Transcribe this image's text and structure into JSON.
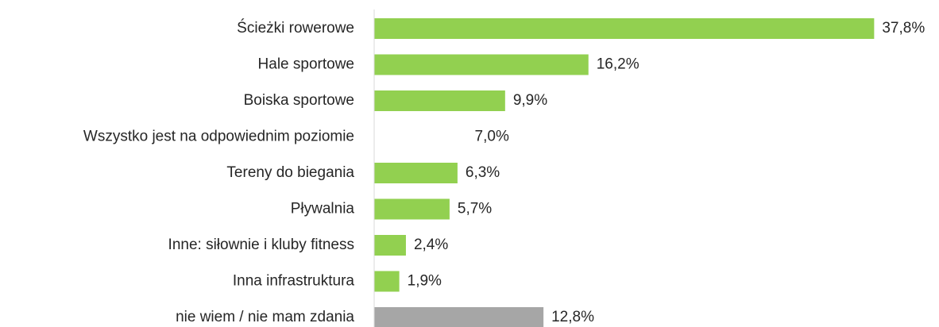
{
  "chart_data": {
    "type": "hbar",
    "categories": [
      "Ścieżki rowerowe",
      "Hale sportowe",
      "Boiska sportowe",
      "Wszystko jest na odpowiednim poziomie",
      "Tereny do biegania",
      "Pływalnia",
      "Inne: siłownie i kluby fitness",
      "Inna infrastruktura",
      "nie wiem / nie mam zdania"
    ],
    "values": [
      37.8,
      16.2,
      9.9,
      7.0,
      6.3,
      5.7,
      2.4,
      1.9,
      12.8
    ],
    "value_labels": [
      "37,8%",
      "16,2%",
      "9,9%",
      "7,0%",
      "6,3%",
      "5,7%",
      "2,4%",
      "1,9%",
      "12,8%"
    ],
    "colors": [
      "#92d050",
      "#92d050",
      "#92d050",
      "#ffffff",
      "#92d050",
      "#92d050",
      "#92d050",
      "#92d050",
      "#a6a6a6"
    ],
    "xlim": [
      0,
      40
    ]
  }
}
